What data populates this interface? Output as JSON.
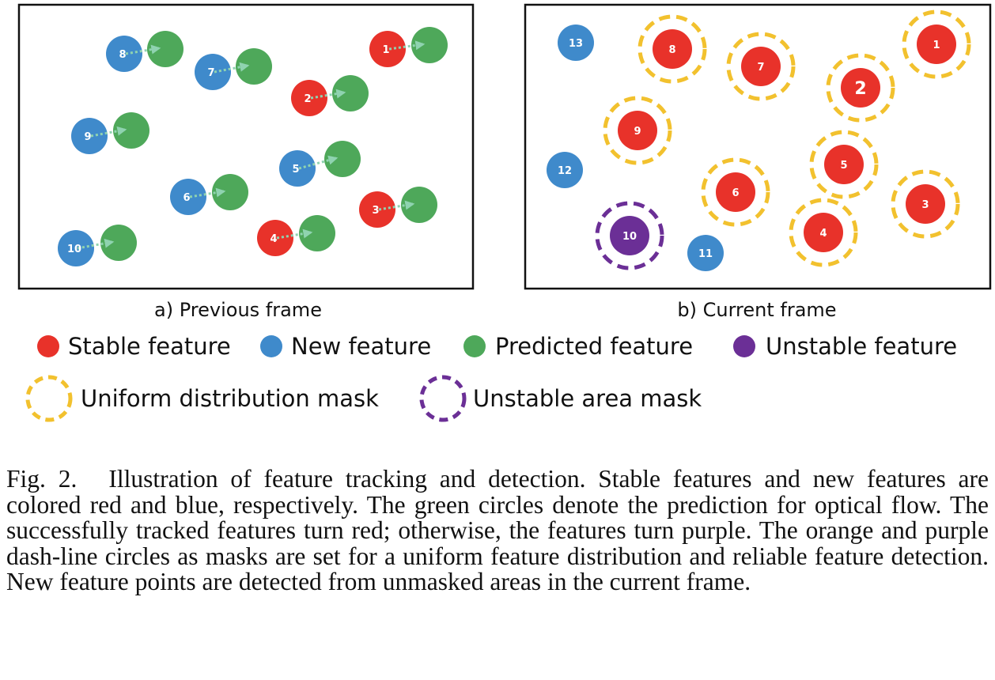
{
  "panels": {
    "previous": {
      "label": "a) Previous frame",
      "features": [
        {
          "id": "1",
          "type": "stable"
        },
        {
          "id": "2",
          "type": "stable"
        },
        {
          "id": "3",
          "type": "stable"
        },
        {
          "id": "4",
          "type": "stable"
        },
        {
          "id": "5",
          "type": "new"
        },
        {
          "id": "6",
          "type": "new"
        },
        {
          "id": "7",
          "type": "new"
        },
        {
          "id": "8",
          "type": "new"
        },
        {
          "id": "9",
          "type": "new"
        },
        {
          "id": "10",
          "type": "new"
        }
      ]
    },
    "current": {
      "label": "b) Current frame",
      "features": [
        {
          "id": "1",
          "type": "stable",
          "mask": "uniform"
        },
        {
          "id": "2",
          "type": "stable",
          "mask": "uniform"
        },
        {
          "id": "3",
          "type": "stable",
          "mask": "uniform"
        },
        {
          "id": "4",
          "type": "stable",
          "mask": "uniform"
        },
        {
          "id": "5",
          "type": "stable",
          "mask": "uniform"
        },
        {
          "id": "6",
          "type": "stable",
          "mask": "uniform"
        },
        {
          "id": "7",
          "type": "stable",
          "mask": "uniform"
        },
        {
          "id": "8",
          "type": "stable",
          "mask": "uniform"
        },
        {
          "id": "9",
          "type": "stable",
          "mask": "uniform"
        },
        {
          "id": "10",
          "type": "unstable",
          "mask": "unstable"
        },
        {
          "id": "11",
          "type": "new"
        },
        {
          "id": "12",
          "type": "new"
        },
        {
          "id": "13",
          "type": "new"
        }
      ]
    }
  },
  "legend": {
    "stable": "Stable feature",
    "new": "New feature",
    "predicted": "Predicted feature",
    "unstable": "Unstable feature",
    "uniform_mask": "Uniform distribution mask",
    "unstable_mask": "Unstable area mask"
  },
  "colors": {
    "stable": "#e8322a",
    "new": "#3f8acb",
    "predicted": "#4ea85a",
    "unstable": "#6b2f96",
    "uniform_mask": "#f2c12e",
    "unstable_mask": "#6b2f96",
    "flow_arrow": "#8fd3b0"
  },
  "caption": {
    "label": "Fig. 2.",
    "text": "Illustration of feature tracking and detection. Stable features and new features are colored red and blue, respectively. The green circles denote the prediction for optical flow. The successfully tracked features turn red; otherwise, the features turn purple. The orange and purple dash-line circles as masks are set for a uniform feature distribution and reliable feature detection. New feature points are detected from unmasked areas in the current frame."
  }
}
